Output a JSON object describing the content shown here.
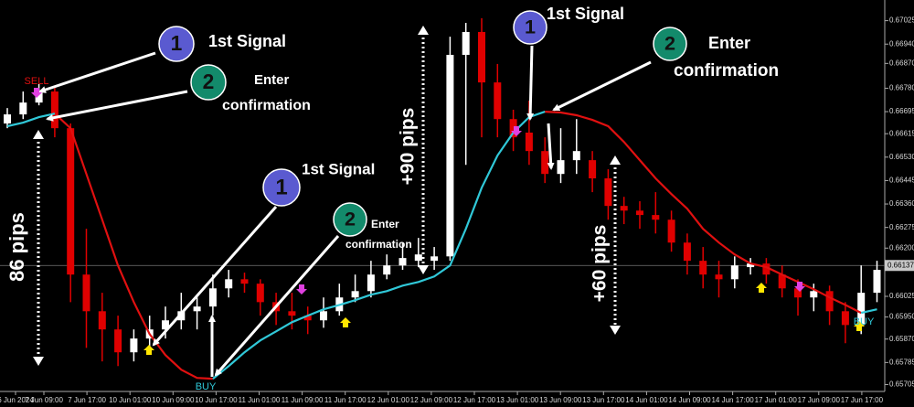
{
  "chart_data": {
    "type": "candlestick",
    "bull_color": "#ffffff",
    "bear_color": "#e00000",
    "ylim": [
      0.6568,
      0.671
    ],
    "yticks": [
      0.67025,
      {
        "value": 0.6694,
        "label": "0.66940"
      },
      {
        "value": 0.6687,
        "label": "0.66870"
      },
      {
        "value": 0.6678,
        "label": "0.66780"
      },
      0.66695,
      0.66615,
      {
        "value": 0.6653,
        "label": "0.66530"
      },
      0.66445,
      {
        "value": 0.6636,
        "label": "0.66360"
      },
      0.66275,
      {
        "value": 0.662,
        "label": "0.66200"
      },
      0.66025,
      {
        "value": 0.6595,
        "label": "0.65950"
      },
      {
        "value": 0.6587,
        "label": "0.65870"
      },
      0.65785,
      0.65705
    ],
    "last_price": 0.66137,
    "x_labels": [
      "6 Jun 2024",
      "7 Jun 09:00",
      "7 Jun 17:00",
      "10 Jun 01:00",
      "10 Jun 09:00",
      "10 Jun 17:00",
      "11 Jun 01:00",
      "11 Jun 09:00",
      "11 Jun 17:00",
      "12 Jun 01:00",
      "12 Jun 09:00",
      "12 Jun 17:00",
      "13 Jun 01:00",
      "13 Jun 09:00",
      "13 Jun 17:00",
      "14 Jun 01:00",
      "14 Jun 09:00",
      "14 Jun 17:00",
      "17 Jun 01:00",
      "17 Jun 09:00",
      "17 Jun 17:00"
    ],
    "candles": [
      [
        0.66652,
        0.66708,
        0.66635,
        0.66685
      ],
      [
        0.66685,
        0.66768,
        0.66668,
        0.66728
      ],
      [
        0.66728,
        0.66795,
        0.66718,
        0.66768
      ],
      [
        0.66768,
        0.66785,
        0.66602,
        0.66635
      ],
      [
        0.66635,
        0.66652,
        0.66004,
        0.66104
      ],
      [
        0.66104,
        0.6627,
        0.65838,
        0.65971
      ],
      [
        0.65971,
        0.66038,
        0.65789,
        0.65905
      ],
      [
        0.65905,
        0.65955,
        0.65772,
        0.65822
      ],
      [
        0.65822,
        0.65905,
        0.65789,
        0.65872
      ],
      [
        0.65872,
        0.65955,
        0.65838,
        0.65905
      ],
      [
        0.65905,
        0.65988,
        0.65872,
        0.65938
      ],
      [
        0.65938,
        0.66038,
        0.65905,
        0.65971
      ],
      [
        0.65971,
        0.66021,
        0.65905,
        0.65988
      ],
      [
        0.65988,
        0.66104,
        0.65955,
        0.66054
      ],
      [
        0.66054,
        0.66121,
        0.66021,
        0.66087
      ],
      [
        0.66087,
        0.66111,
        0.66038,
        0.66071
      ],
      [
        0.66071,
        0.66087,
        0.65955,
        0.66004
      ],
      [
        0.66004,
        0.66038,
        0.65921,
        0.65971
      ],
      [
        0.65971,
        0.66038,
        0.65905,
        0.65955
      ],
      [
        0.65955,
        0.65988,
        0.65888,
        0.65938
      ],
      [
        0.65938,
        0.66021,
        0.65911,
        0.65971
      ],
      [
        0.65971,
        0.66071,
        0.65955,
        0.66021
      ],
      [
        0.66021,
        0.66104,
        0.66004,
        0.66044
      ],
      [
        0.66044,
        0.66154,
        0.66021,
        0.66104
      ],
      [
        0.66104,
        0.66177,
        0.66087,
        0.66137
      ],
      [
        0.66137,
        0.6622,
        0.66121,
        0.66164
      ],
      [
        0.66154,
        0.66237,
        0.66131,
        0.66177
      ],
      [
        0.66154,
        0.66204,
        0.66121,
        0.6617
      ],
      [
        0.6617,
        0.66967,
        0.66154,
        0.66901
      ],
      [
        0.66901,
        0.67017,
        0.66502,
        0.66984
      ],
      [
        0.66984,
        0.67034,
        0.66602,
        0.66801
      ],
      [
        0.66801,
        0.66868,
        0.66602,
        0.66668
      ],
      [
        0.66668,
        0.66702,
        0.66552,
        0.66602
      ],
      [
        0.66619,
        0.66735,
        0.66502,
        0.66552
      ],
      [
        0.66552,
        0.66602,
        0.66436,
        0.66469
      ],
      [
        0.66469,
        0.66635,
        0.66436,
        0.66519
      ],
      [
        0.66519,
        0.66668,
        0.66469,
        0.66552
      ],
      [
        0.66519,
        0.66552,
        0.66403,
        0.66453
      ],
      [
        0.66453,
        0.66486,
        0.66303,
        0.66353
      ],
      [
        0.66353,
        0.66386,
        0.66287,
        0.66336
      ],
      [
        0.66336,
        0.6637,
        0.6627,
        0.6632
      ],
      [
        0.6632,
        0.66403,
        0.66253,
        0.66303
      ],
      [
        0.66303,
        0.66336,
        0.66187,
        0.6622
      ],
      [
        0.6622,
        0.66253,
        0.66104,
        0.66154
      ],
      [
        0.66154,
        0.66204,
        0.66054,
        0.66104
      ],
      [
        0.66104,
        0.66154,
        0.66021,
        0.66087
      ],
      [
        0.66087,
        0.6617,
        0.66054,
        0.66137
      ],
      [
        0.66131,
        0.66164,
        0.66104,
        0.66144
      ],
      [
        0.66144,
        0.66164,
        0.66071,
        0.66104
      ],
      [
        0.66104,
        0.66137,
        0.66021,
        0.66054
      ],
      [
        0.66054,
        0.66087,
        0.65955,
        0.66021
      ],
      [
        0.66021,
        0.66071,
        0.65971,
        0.66044
      ],
      [
        0.66044,
        0.66064,
        0.65921,
        0.65971
      ],
      [
        0.65971,
        0.66004,
        0.65855,
        0.65921
      ],
      [
        0.65921,
        0.66137,
        0.65888,
        0.66038
      ],
      [
        0.66038,
        0.66154,
        0.66004,
        0.66121
      ]
    ],
    "series": [
      {
        "color": "#e01010",
        "values": [
          null,
          null,
          null,
          0.66688,
          0.66635,
          0.66469,
          0.66303,
          0.66137,
          0.66004,
          0.65888,
          0.65812,
          0.65759,
          0.65729,
          0.65726,
          null,
          null,
          null,
          null,
          null,
          null,
          null,
          null,
          null,
          null,
          null,
          null,
          null,
          null,
          null,
          null,
          null,
          null,
          null,
          null,
          0.66695,
          0.66692,
          0.66682,
          0.66665,
          0.66642,
          0.66585,
          0.66519,
          0.66453,
          0.66396,
          0.66343,
          0.6627,
          0.6622,
          0.66177,
          0.66144,
          0.66131,
          0.66104,
          0.66077,
          0.66051,
          0.66021,
          0.65994,
          0.65965,
          null
        ]
      },
      {
        "color": "#30c8d8",
        "values": [
          0.66642,
          0.66655,
          0.66675,
          0.66688,
          null,
          null,
          null,
          null,
          null,
          null,
          null,
          null,
          null,
          0.65726,
          0.65772,
          0.65822,
          0.65865,
          0.65898,
          0.65931,
          0.65955,
          0.65978,
          0.65994,
          0.66011,
          0.66031,
          0.66044,
          0.66064,
          0.66077,
          0.66097,
          0.66137,
          0.6627,
          0.66419,
          0.66536,
          0.66619,
          0.66675,
          0.66695,
          null,
          null,
          null,
          null,
          null,
          null,
          null,
          null,
          null,
          null,
          null,
          null,
          null,
          null,
          null,
          null,
          null,
          null,
          null,
          0.65965,
          0.65978
        ]
      }
    ],
    "signals": [
      "SELL",
      "BUY",
      "BUY"
    ],
    "annotations": [
      "1",
      "1st Signal",
      "2",
      "Enter",
      "confirmation",
      "1",
      "1st Signal",
      "2",
      "Enter",
      "confirmation",
      "1",
      "1st Signal",
      "2",
      "Enter",
      "confirmation"
    ],
    "pips": [
      "86 pips",
      "+90 pips",
      "+60 pips"
    ]
  }
}
